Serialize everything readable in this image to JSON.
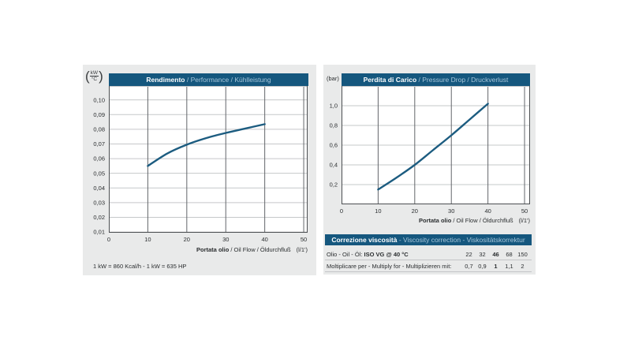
{
  "colors": {
    "panel_bg": "#e9eaea",
    "header_bg": "#15577e",
    "header_bold_text": "#ffffff",
    "header_light_text": "#a7c6da",
    "plot_bg": "#ffffff",
    "grid_h": "#c6c8ca",
    "grid_v": "#63666a",
    "axis": "#4c4f52",
    "curve": "#1c5c80",
    "text": "#2b2e30"
  },
  "chart_data": [
    {
      "type": "line",
      "title": {
        "bold": "Rendimento",
        "rest": " / Performance / Kühlleistung"
      },
      "y_unit": {
        "style": "fraction",
        "top": "kW",
        "bottom": "°C"
      },
      "xlabel": {
        "bold": "Portata olio",
        "rest": " / Oil Flow / Öldurchfluß",
        "unit": "(l/1')"
      },
      "x": [
        10,
        15,
        20,
        25,
        30,
        35,
        40
      ],
      "y": [
        0.055,
        0.0635,
        0.0695,
        0.074,
        0.0775,
        0.0805,
        0.0835
      ],
      "xlim": [
        0,
        51
      ],
      "ylim": [
        0.0095,
        0.1095
      ],
      "xticks": [
        0,
        10,
        20,
        30,
        40,
        50
      ],
      "xtick_labels": [
        "0",
        "10",
        "20",
        "30",
        "40",
        "50"
      ],
      "ytick_values": [
        0.01,
        0.02,
        0.03,
        0.04,
        0.05,
        0.06,
        0.07,
        0.08,
        0.09,
        0.1
      ],
      "ytick_labels": [
        "0,01",
        "0,02",
        "0,03",
        "0,04",
        "0,05",
        "0,06",
        "0,07",
        "0,08",
        "0,09",
        "0,10"
      ],
      "grid": true,
      "legend": "none"
    },
    {
      "type": "line",
      "title": {
        "bold": "Perdita di Carico",
        "rest": " / Pressure Drop / Druckverlust"
      },
      "y_unit": {
        "style": "plain",
        "text": "(bar)"
      },
      "xlabel": {
        "bold": "Portata olio",
        "rest": " / Oil Flow / Öldurchfluß",
        "unit": "(l/1')"
      },
      "x": [
        10,
        15,
        20,
        25,
        30,
        35,
        40
      ],
      "y": [
        0.15,
        0.27,
        0.4,
        0.55,
        0.7,
        0.86,
        1.02
      ],
      "xlim": [
        0,
        51.5
      ],
      "ylim": [
        0,
        1.2
      ],
      "xticks": [
        0,
        10,
        20,
        30,
        40,
        50
      ],
      "xtick_labels": [
        "0",
        "10",
        "20",
        "30",
        "40",
        "50"
      ],
      "ytick_values": [
        0.2,
        0.4,
        0.6,
        0.8,
        1.0
      ],
      "ytick_labels": [
        "0,2",
        "0,4",
        "0,6",
        "0,8",
        "1,0"
      ],
      "grid": true,
      "legend": "none"
    }
  ],
  "footnote": "1 kW = 860 Kcal/h - 1 kW = 635 HP",
  "viscosity_correction": {
    "title": {
      "bold": "Correzione viscosità",
      "rest": " - Viscosity correction - Viskositätskorrektur"
    },
    "rows": [
      {
        "label": {
          "regular": "Olio - Oil - Öl: ",
          "bold": "ISO VG @ 40 °C"
        },
        "values": [
          "22",
          "32",
          "46",
          "68",
          "150"
        ],
        "bold_index": 2
      },
      {
        "label": {
          "regular": "Moltiplicare per - Multiply for - Multiplizieren mit:",
          "bold": ""
        },
        "values": [
          "0,7",
          "0,9",
          "1",
          "1,1",
          "2"
        ],
        "bold_index": 2
      }
    ]
  }
}
